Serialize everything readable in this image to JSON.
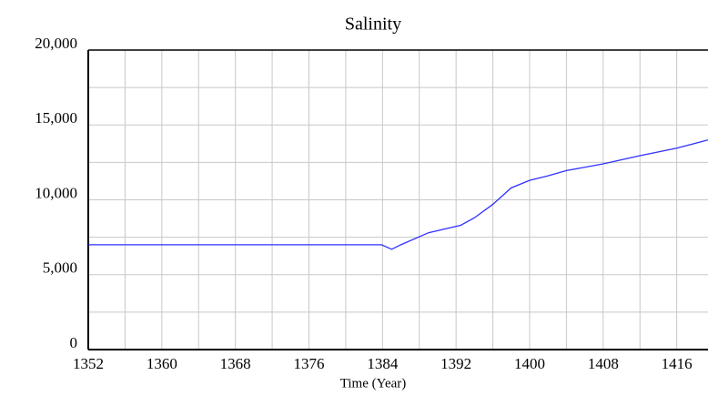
{
  "chart_data": {
    "type": "line",
    "title": "Salinity",
    "x_label": "Time (Year)",
    "x": [
      1352,
      1383.9,
      1385,
      1386,
      1389,
      1392.5,
      1394,
      1396,
      1398,
      1400,
      1402,
      1404,
      1408,
      1412,
      1416,
      1419.4
    ],
    "series": [
      {
        "name": "Salinity",
        "color": "#3030ff",
        "values": [
          7000,
          7000,
          6700,
          7000,
          7800,
          8300,
          8800,
          9700,
          10800,
          11300,
          11600,
          11950,
          12400,
          12950,
          13450,
          14000
        ]
      }
    ],
    "xlim": [
      1352,
      1419.4
    ],
    "ylim": [
      0,
      20000
    ],
    "xticks": [
      1352,
      1360,
      1368,
      1376,
      1384,
      1392,
      1400,
      1408,
      1416
    ],
    "yticks": [
      0,
      {
        "value": 5000,
        "label": "5,000"
      },
      {
        "value": 10000,
        "label": "10,000"
      },
      {
        "value": 15000,
        "label": "15,000"
      },
      {
        "value": 20000,
        "label": "20,000"
      }
    ],
    "grid": true
  }
}
